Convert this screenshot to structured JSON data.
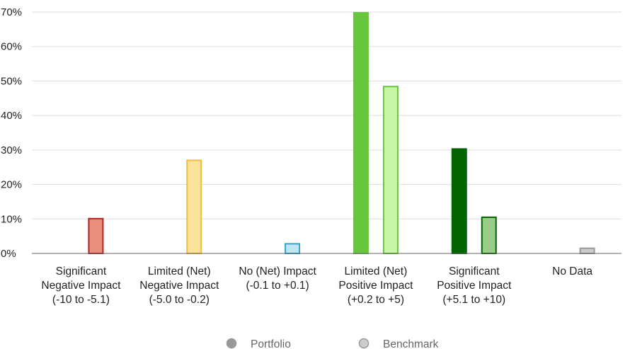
{
  "chart_data": {
    "type": "bar",
    "categories": [
      [
        "Significant",
        "Negative Impact",
        "(-10 to -5.1)"
      ],
      [
        "Limited (Net)",
        "Negative Impact",
        "(-5.0 to -0.2)"
      ],
      [
        "No (Net) Impact",
        "(-0.1 to +0.1)"
      ],
      [
        "Limited (Net)",
        "Positive Impact",
        "(+0.2 to +5)"
      ],
      [
        "Significant",
        "Positive Impact",
        "(+5.1 to +10)"
      ],
      [
        "No Data"
      ]
    ],
    "series": [
      {
        "name": "Portfolio",
        "values": [
          0,
          0,
          0,
          70,
          30.5,
          0
        ]
      },
      {
        "name": "Benchmark",
        "values": [
          10.3,
          27.2,
          3.0,
          48.6,
          10.7,
          1.7
        ]
      }
    ],
    "ylim": [
      0,
      70
    ],
    "yticks": [
      "0%",
      "10%",
      "20%",
      "30%",
      "40%",
      "50%",
      "60%",
      "70%"
    ],
    "ytick_values": [
      0,
      10,
      20,
      30,
      40,
      50,
      60,
      70
    ],
    "grid": true,
    "legend_position": "bottom",
    "colors": {
      "portfolio_fill": [
        "#e8907c",
        "#fde29a",
        "#bfe6f3",
        "#67c63c",
        "#006400",
        "#cccccc"
      ],
      "portfolio_stroke": [
        "#b22222",
        "#f5b942",
        "#3aa0d0",
        "#67c63c",
        "#006400",
        "#999999"
      ],
      "benchmark_fill": [
        "#e8907c",
        "#fde29a",
        "#bfe6f3",
        "#c7f5a8",
        "#99cc88",
        "#cccccc"
      ],
      "benchmark_stroke": [
        "#b22222",
        "#f5b942",
        "#3aa0d0",
        "#67c63c",
        "#006400",
        "#999999"
      ],
      "legend_portfolio": "#999999",
      "legend_benchmark": "#cccccc",
      "legend_benchmark_stroke": "#999999",
      "gridline": "#dddddd",
      "baseline": "#666666"
    }
  }
}
